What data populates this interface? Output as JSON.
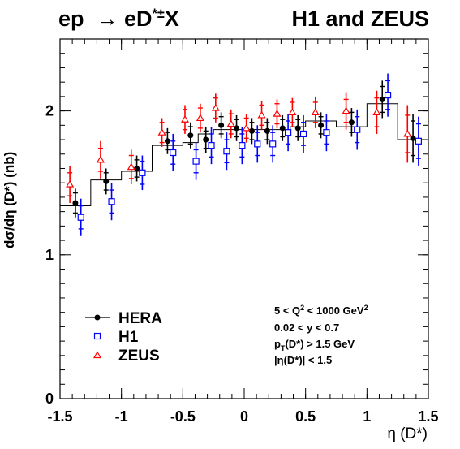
{
  "chart_data": {
    "type": "scatter",
    "title_left": "ep → eD*±X",
    "title_right": "H1 and ZEUS",
    "xlabel": "η (D*)",
    "ylabel": "dσ/dη (D*) (nb)",
    "xlim": [
      -1.5,
      1.5
    ],
    "ylim": [
      0,
      2.5
    ],
    "xticks": [
      "-1.5",
      "-1",
      "-0.5",
      "0",
      "0.5",
      "1",
      "1.5"
    ],
    "yticks": [
      "0",
      "1",
      "2"
    ],
    "bin_edges": [
      -1.5,
      -1.25,
      -1.0,
      -0.75,
      -0.5,
      -0.375,
      -0.25,
      -0.125,
      0.0,
      0.125,
      0.25,
      0.375,
      0.5,
      0.75,
      1.0,
      1.25,
      1.5
    ],
    "series": [
      {
        "name": "HERA",
        "marker": "filled-circle",
        "color": "#000000",
        "x": [
          -1.375,
          -1.125,
          -0.875,
          -0.625,
          -0.4375,
          -0.3125,
          -0.1875,
          -0.0625,
          0.0625,
          0.1875,
          0.3125,
          0.4375,
          0.625,
          0.875,
          1.125,
          1.375
        ],
        "y": [
          1.36,
          1.51,
          1.6,
          1.79,
          1.83,
          1.8,
          1.9,
          1.88,
          1.86,
          1.86,
          1.88,
          1.88,
          1.9,
          1.92,
          2.08,
          1.81
        ],
        "stat_err": [
          0.07,
          0.06,
          0.06,
          0.06,
          0.06,
          0.06,
          0.06,
          0.06,
          0.06,
          0.06,
          0.06,
          0.06,
          0.06,
          0.07,
          0.09,
          0.12
        ],
        "tot_err": [
          0.1,
          0.09,
          0.09,
          0.09,
          0.09,
          0.09,
          0.09,
          0.09,
          0.09,
          0.09,
          0.09,
          0.09,
          0.09,
          0.1,
          0.13,
          0.17
        ]
      },
      {
        "name": "H1",
        "marker": "open-square",
        "color": "#0000ff",
        "x": [
          -1.375,
          -1.125,
          -0.875,
          -0.625,
          -0.4375,
          -0.3125,
          -0.1875,
          -0.0625,
          0.0625,
          0.1875,
          0.3125,
          0.4375,
          0.625,
          0.875,
          1.125,
          1.375
        ],
        "y": [
          1.26,
          1.37,
          1.57,
          1.71,
          1.65,
          1.76,
          1.72,
          1.76,
          1.77,
          1.77,
          1.85,
          1.84,
          1.85,
          1.87,
          2.11,
          1.79
        ],
        "stat_err": [
          0.08,
          0.08,
          0.08,
          0.08,
          0.08,
          0.08,
          0.08,
          0.08,
          0.08,
          0.08,
          0.08,
          0.08,
          0.08,
          0.09,
          0.1,
          0.12
        ],
        "tot_err": [
          0.13,
          0.13,
          0.12,
          0.13,
          0.13,
          0.13,
          0.13,
          0.13,
          0.13,
          0.13,
          0.13,
          0.13,
          0.13,
          0.14,
          0.15,
          0.17
        ]
      },
      {
        "name": "ZEUS",
        "marker": "open-triangle",
        "color": "#ff0000",
        "x": [
          -1.375,
          -1.125,
          -0.875,
          -0.625,
          -0.4375,
          -0.3125,
          -0.1875,
          -0.0625,
          0.0625,
          0.1875,
          0.3125,
          0.4375,
          0.625,
          0.875,
          1.125,
          1.375
        ],
        "y": [
          1.49,
          1.66,
          1.61,
          1.85,
          1.94,
          1.95,
          2.02,
          1.91,
          1.88,
          1.97,
          1.98,
          1.99,
          1.99,
          2.0,
          1.99,
          1.84
        ],
        "stat_err": [
          0.08,
          0.08,
          0.08,
          0.07,
          0.07,
          0.07,
          0.07,
          0.07,
          0.07,
          0.07,
          0.07,
          0.07,
          0.07,
          0.08,
          0.1,
          0.13
        ],
        "tot_err": [
          0.13,
          0.13,
          0.12,
          0.1,
          0.1,
          0.1,
          0.1,
          0.1,
          0.1,
          0.1,
          0.1,
          0.1,
          0.11,
          0.13,
          0.15,
          0.2
        ]
      },
      {
        "marker": "histogram",
        "color": "#000000",
        "y": [
          1.34,
          1.52,
          1.58,
          1.76,
          1.78,
          1.84,
          1.87,
          1.87,
          1.87,
          1.87,
          1.87,
          1.89,
          1.93,
          1.89,
          2.05,
          1.8
        ]
      }
    ],
    "legend": {
      "position": "bottom-left"
    },
    "annotation_lines": [
      "5 < Q² < 1000 GeV²",
      "0.02 < y < 0.7",
      "p_T(D*) > 1.5 GeV",
      "|η(D*)| < 1.5"
    ]
  }
}
